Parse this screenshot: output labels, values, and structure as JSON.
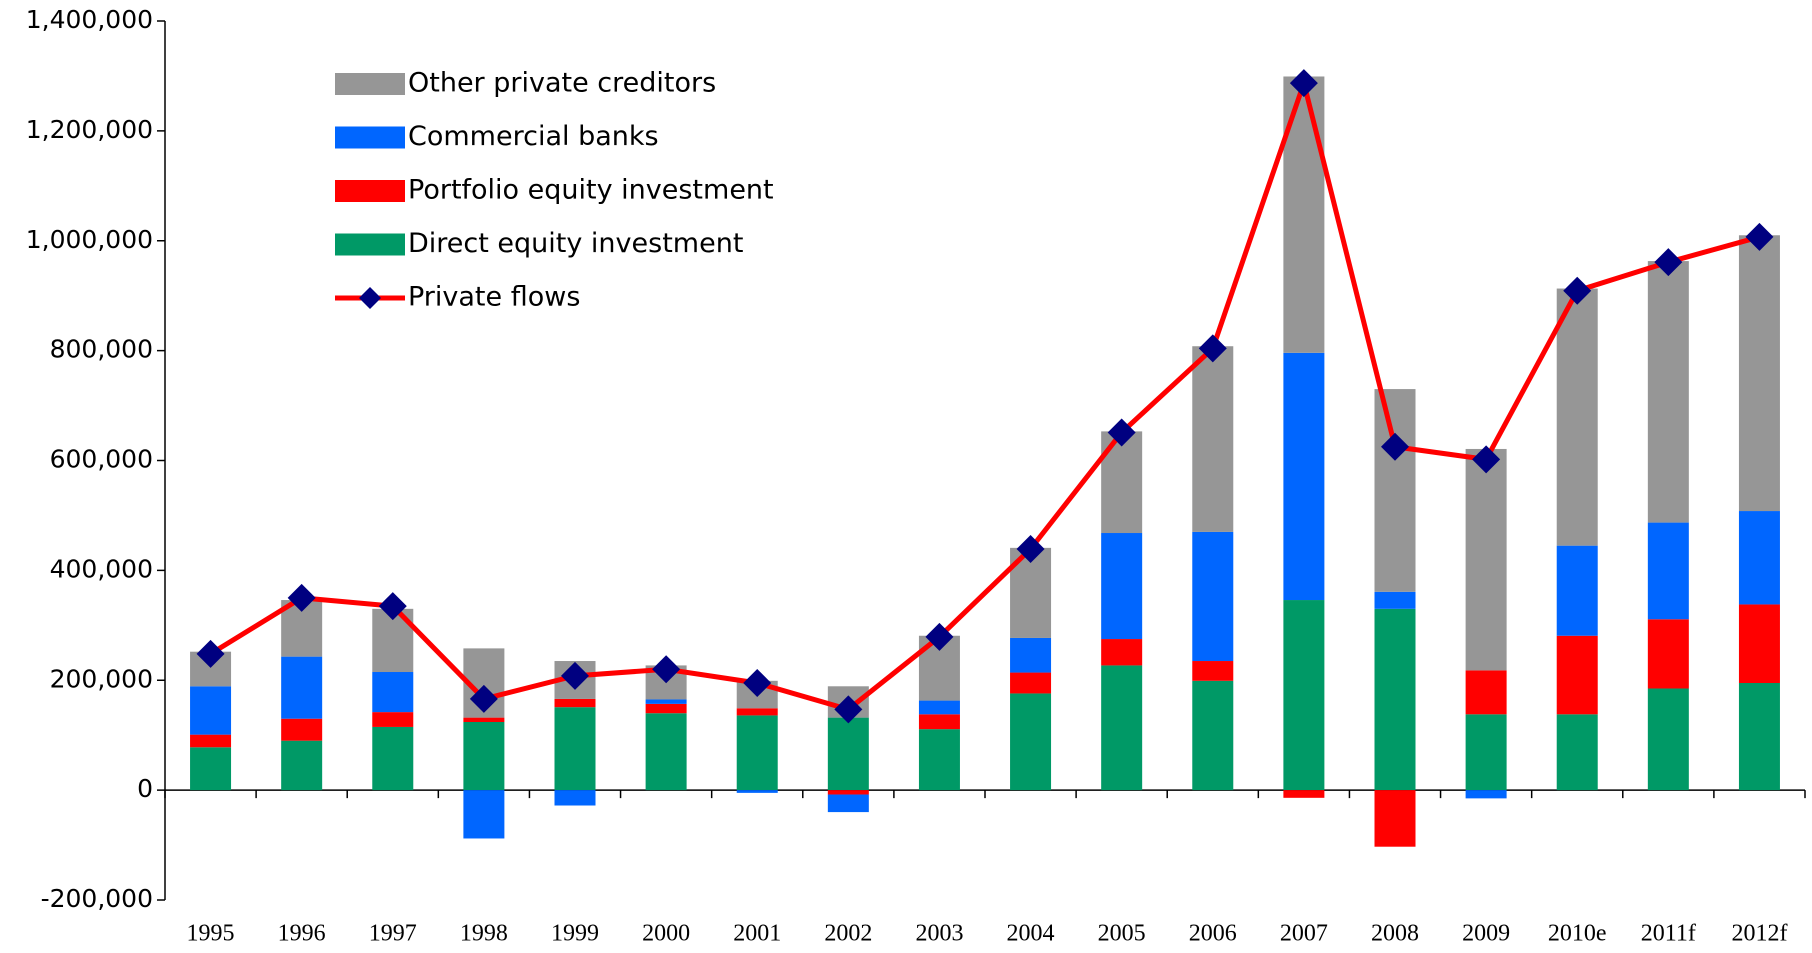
{
  "chart_data": {
    "type": "bar",
    "categories": [
      "1995",
      "1996",
      "1997",
      "1998",
      "1999",
      "2000",
      "2001",
      "2002",
      "2003",
      "2004",
      "2005",
      "2006",
      "2007",
      "2008",
      "2009",
      "2010e",
      "2011f",
      "2012f"
    ],
    "series": [
      {
        "name": "Other private creditors",
        "color": "#969696",
        "values": [
          63000,
          103000,
          115000,
          126000,
          69000,
          62000,
          50000,
          57000,
          118000,
          164000,
          185000,
          338000,
          503000,
          369000,
          403000,
          468000,
          476000,
          502000
        ]
      },
      {
        "name": "Commercial banks",
        "color": "#0066ff",
        "values": [
          88000,
          113000,
          73000,
          -88000,
          -28000,
          8000,
          -5000,
          -32000,
          25000,
          63000,
          193000,
          235000,
          450000,
          31000,
          -15000,
          164000,
          176000,
          170000
        ]
      },
      {
        "name": "Portfolio equity investment",
        "color": "#ff0000",
        "values": [
          23000,
          40000,
          27000,
          8000,
          15000,
          17000,
          13000,
          -8000,
          27000,
          38000,
          48000,
          36000,
          -14000,
          -103000,
          80000,
          143000,
          126000,
          143000
        ]
      },
      {
        "name": "Direct equity investment",
        "color": "#009966",
        "values": [
          78000,
          90000,
          115000,
          124000,
          151000,
          140000,
          136000,
          132000,
          111000,
          176000,
          227000,
          199000,
          346000,
          330000,
          138000,
          138000,
          185000,
          195000
        ]
      },
      {
        "name": "Private flows",
        "type": "line",
        "color": "#ff0000",
        "marker_color": "#000080",
        "values": [
          248000,
          350000,
          335000,
          166000,
          208000,
          220000,
          195000,
          147000,
          279000,
          439000,
          651000,
          804000,
          1287000,
          625000,
          602000,
          909000,
          961000,
          1007000
        ]
      }
    ],
    "ylim": [
      -200000,
      1400000
    ],
    "yticks": [
      {
        "value": -200000,
        "label": "-200,000"
      },
      0,
      {
        "value": 200000,
        "label": "200,000"
      },
      {
        "value": 400000,
        "label": "400,000"
      },
      {
        "value": 600000,
        "label": "600,000"
      },
      {
        "value": 800000,
        "label": "800,000"
      },
      {
        "value": 1000000,
        "label": "1,000,000"
      },
      {
        "value": 1200000,
        "label": "1,200,000"
      },
      {
        "value": 1400000,
        "label": "1,400,000"
      }
    ],
    "legend": "upper left"
  }
}
